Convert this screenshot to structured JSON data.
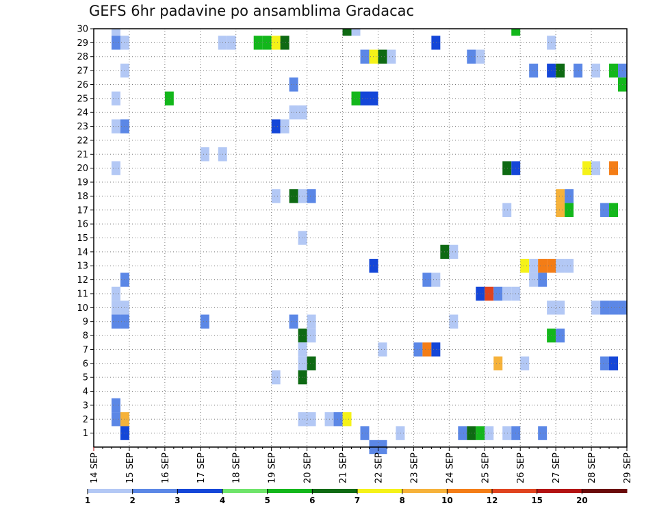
{
  "chart_data": {
    "type": "heatmap",
    "title": "GEFS 6hr padavine po ansamblima Gradacac",
    "xlabel": "",
    "ylabel": "",
    "x_tick_labels": [
      "14 SEP",
      "15 SEP",
      "16 SEP",
      "17 SEP",
      "18 SEP",
      "19 SEP",
      "20 SEP",
      "21 SEP",
      "22 SEP",
      "23 SEP",
      "24 SEP",
      "25 SEP",
      "26 SEP",
      "27 SEP",
      "28 SEP",
      "29 SEP"
    ],
    "x_units": "6-hour steps from 14 SEP 00Z",
    "xlim": [
      0,
      60
    ],
    "y_tick_labels": [
      "1",
      "2",
      "3",
      "4",
      "5",
      "6",
      "7",
      "8",
      "9",
      "10",
      "11",
      "12",
      "13",
      "14",
      "15",
      "16",
      "17",
      "18",
      "19",
      "20",
      "21",
      "22",
      "23",
      "24",
      "25",
      "26",
      "27",
      "28",
      "29",
      "30"
    ],
    "ylim": [
      0,
      30
    ],
    "grid": true,
    "colorbar": {
      "labels": [
        "1",
        "2",
        "3",
        "4",
        "5",
        "6",
        "7",
        "8",
        "10",
        "12",
        "15",
        "20"
      ],
      "colors": [
        "#b3c8f5",
        "#5b87e6",
        "#1446d8",
        "#6ee46a",
        "#13b71b",
        "#0e6a13",
        "#f5f218",
        "#f6b23a",
        "#f47d16",
        "#e0431e",
        "#b31212",
        "#6a0a0a"
      ]
    },
    "cells": [
      {
        "x": 3,
        "y": 30,
        "v": 1
      },
      {
        "x": 29,
        "y": 30,
        "v": 6
      },
      {
        "x": 30,
        "y": 30,
        "v": 1
      },
      {
        "x": 48,
        "y": 30,
        "v": 5
      },
      {
        "x": 3,
        "y": 29,
        "v": 2
      },
      {
        "x": 4,
        "y": 29,
        "v": 1
      },
      {
        "x": 15,
        "y": 29,
        "v": 1
      },
      {
        "x": 16,
        "y": 29,
        "v": 1
      },
      {
        "x": 19,
        "y": 29,
        "v": 5
      },
      {
        "x": 20,
        "y": 29,
        "v": 5
      },
      {
        "x": 21,
        "y": 29,
        "v": 7
      },
      {
        "x": 22,
        "y": 29,
        "v": 6
      },
      {
        "x": 39,
        "y": 29,
        "v": 3
      },
      {
        "x": 52,
        "y": 29,
        "v": 1
      },
      {
        "x": 31,
        "y": 28,
        "v": 2
      },
      {
        "x": 32,
        "y": 28,
        "v": 7
      },
      {
        "x": 33,
        "y": 28,
        "v": 6
      },
      {
        "x": 34,
        "y": 28,
        "v": 1
      },
      {
        "x": 43,
        "y": 28,
        "v": 2
      },
      {
        "x": 44,
        "y": 28,
        "v": 1
      },
      {
        "x": 4,
        "y": 27,
        "v": 1
      },
      {
        "x": 50,
        "y": 27,
        "v": 2
      },
      {
        "x": 52,
        "y": 27,
        "v": 3
      },
      {
        "x": 53,
        "y": 27,
        "v": 6
      },
      {
        "x": 55,
        "y": 27,
        "v": 2
      },
      {
        "x": 57,
        "y": 27,
        "v": 1
      },
      {
        "x": 59,
        "y": 27,
        "v": 5
      },
      {
        "x": 60,
        "y": 27,
        "v": 2
      },
      {
        "x": 23,
        "y": 26,
        "v": 2
      },
      {
        "x": 60,
        "y": 26,
        "v": 5
      },
      {
        "x": 3,
        "y": 25,
        "v": 1
      },
      {
        "x": 9,
        "y": 25,
        "v": 5
      },
      {
        "x": 30,
        "y": 25,
        "v": 5
      },
      {
        "x": 31,
        "y": 25,
        "v": 3
      },
      {
        "x": 32,
        "y": 25,
        "v": 3
      },
      {
        "x": 23,
        "y": 24,
        "v": 1
      },
      {
        "x": 24,
        "y": 24,
        "v": 1
      },
      {
        "x": 3,
        "y": 23,
        "v": 1
      },
      {
        "x": 4,
        "y": 23,
        "v": 2
      },
      {
        "x": 21,
        "y": 23,
        "v": 3
      },
      {
        "x": 22,
        "y": 23,
        "v": 1
      },
      {
        "x": 13,
        "y": 21,
        "v": 1
      },
      {
        "x": 15,
        "y": 21,
        "v": 1
      },
      {
        "x": 3,
        "y": 20,
        "v": 1
      },
      {
        "x": 47,
        "y": 20,
        "v": 6
      },
      {
        "x": 48,
        "y": 20,
        "v": 3
      },
      {
        "x": 56,
        "y": 20,
        "v": 7
      },
      {
        "x": 57,
        "y": 20,
        "v": 1
      },
      {
        "x": 59,
        "y": 20,
        "v": 10
      },
      {
        "x": 21,
        "y": 18,
        "v": 1
      },
      {
        "x": 23,
        "y": 18,
        "v": 6
      },
      {
        "x": 24,
        "y": 18,
        "v": 1
      },
      {
        "x": 25,
        "y": 18,
        "v": 2
      },
      {
        "x": 53,
        "y": 18,
        "v": 8
      },
      {
        "x": 54,
        "y": 18,
        "v": 2
      },
      {
        "x": 47,
        "y": 17,
        "v": 1
      },
      {
        "x": 53,
        "y": 17,
        "v": 8
      },
      {
        "x": 54,
        "y": 17,
        "v": 5
      },
      {
        "x": 58,
        "y": 17,
        "v": 2
      },
      {
        "x": 59,
        "y": 17,
        "v": 5
      },
      {
        "x": 24,
        "y": 15,
        "v": 1
      },
      {
        "x": 40,
        "y": 14,
        "v": 6
      },
      {
        "x": 41,
        "y": 14,
        "v": 1
      },
      {
        "x": 32,
        "y": 13,
        "v": 3
      },
      {
        "x": 49,
        "y": 13,
        "v": 7
      },
      {
        "x": 50,
        "y": 13,
        "v": 1
      },
      {
        "x": 51,
        "y": 13,
        "v": 10
      },
      {
        "x": 52,
        "y": 13,
        "v": 10
      },
      {
        "x": 53,
        "y": 13,
        "v": 1
      },
      {
        "x": 54,
        "y": 13,
        "v": 1
      },
      {
        "x": 4,
        "y": 12,
        "v": 2
      },
      {
        "x": 38,
        "y": 12,
        "v": 2
      },
      {
        "x": 39,
        "y": 12,
        "v": 1
      },
      {
        "x": 50,
        "y": 12,
        "v": 1
      },
      {
        "x": 51,
        "y": 12,
        "v": 2
      },
      {
        "x": 3,
        "y": 11,
        "v": 1
      },
      {
        "x": 44,
        "y": 11,
        "v": 3
      },
      {
        "x": 45,
        "y": 11,
        "v": 12
      },
      {
        "x": 46,
        "y": 11,
        "v": 2
      },
      {
        "x": 47,
        "y": 11,
        "v": 1
      },
      {
        "x": 48,
        "y": 11,
        "v": 1
      },
      {
        "x": 3,
        "y": 10,
        "v": 1
      },
      {
        "x": 4,
        "y": 10,
        "v": 1
      },
      {
        "x": 52,
        "y": 10,
        "v": 1
      },
      {
        "x": 53,
        "y": 10,
        "v": 1
      },
      {
        "x": 57,
        "y": 10,
        "v": 1
      },
      {
        "x": 58,
        "y": 10,
        "v": 2
      },
      {
        "x": 59,
        "y": 10,
        "v": 2
      },
      {
        "x": 60,
        "y": 10,
        "v": 2
      },
      {
        "x": 3,
        "y": 9,
        "v": 2
      },
      {
        "x": 4,
        "y": 9,
        "v": 2
      },
      {
        "x": 13,
        "y": 9,
        "v": 2
      },
      {
        "x": 23,
        "y": 9,
        "v": 2
      },
      {
        "x": 25,
        "y": 9,
        "v": 1
      },
      {
        "x": 41,
        "y": 9,
        "v": 1
      },
      {
        "x": 24,
        "y": 8,
        "v": 6
      },
      {
        "x": 25,
        "y": 8,
        "v": 1
      },
      {
        "x": 52,
        "y": 8,
        "v": 5
      },
      {
        "x": 53,
        "y": 8,
        "v": 2
      },
      {
        "x": 24,
        "y": 7,
        "v": 1
      },
      {
        "x": 33,
        "y": 7,
        "v": 1
      },
      {
        "x": 37,
        "y": 7,
        "v": 2
      },
      {
        "x": 38,
        "y": 7,
        "v": 10
      },
      {
        "x": 39,
        "y": 7,
        "v": 3
      },
      {
        "x": 24,
        "y": 6,
        "v": 1
      },
      {
        "x": 25,
        "y": 6,
        "v": 6
      },
      {
        "x": 46,
        "y": 6,
        "v": 8
      },
      {
        "x": 49,
        "y": 6,
        "v": 1
      },
      {
        "x": 58,
        "y": 6,
        "v": 2
      },
      {
        "x": 59,
        "y": 6,
        "v": 3
      },
      {
        "x": 21,
        "y": 5,
        "v": 1
      },
      {
        "x": 24,
        "y": 5,
        "v": 6
      },
      {
        "x": 3,
        "y": 3,
        "v": 2
      },
      {
        "x": 3,
        "y": 2,
        "v": 2
      },
      {
        "x": 4,
        "y": 2,
        "v": 8
      },
      {
        "x": 24,
        "y": 2,
        "v": 1
      },
      {
        "x": 25,
        "y": 2,
        "v": 1
      },
      {
        "x": 27,
        "y": 2,
        "v": 1
      },
      {
        "x": 28,
        "y": 2,
        "v": 2
      },
      {
        "x": 29,
        "y": 2,
        "v": 7
      },
      {
        "x": 4,
        "y": 1,
        "v": 3
      },
      {
        "x": 31,
        "y": 1,
        "v": 2
      },
      {
        "x": 35,
        "y": 1,
        "v": 1
      },
      {
        "x": 42,
        "y": 1,
        "v": 2
      },
      {
        "x": 43,
        "y": 1,
        "v": 6
      },
      {
        "x": 44,
        "y": 1,
        "v": 5
      },
      {
        "x": 45,
        "y": 1,
        "v": 1
      },
      {
        "x": 47,
        "y": 1,
        "v": 1
      },
      {
        "x": 48,
        "y": 1,
        "v": 2
      },
      {
        "x": 51,
        "y": 1,
        "v": 2
      },
      {
        "x": 32,
        "y": 0,
        "v": 2
      },
      {
        "x": 33,
        "y": 0,
        "v": 2
      }
    ]
  }
}
